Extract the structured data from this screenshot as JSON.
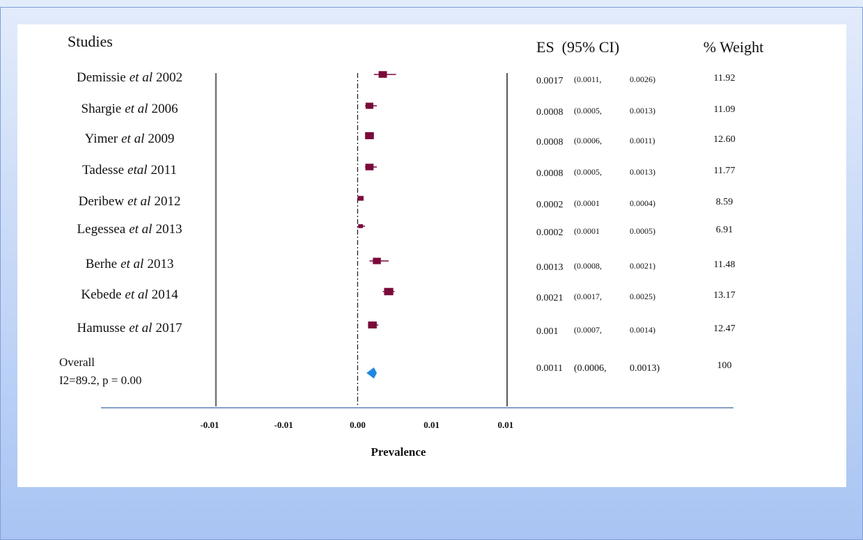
{
  "chart_data": {
    "type": "forest",
    "studies_header": "Studies",
    "es_header": "ES  (95% CI)",
    "weight_header": "% Weight",
    "x_label": "Prevalence",
    "studies": [
      {
        "author": "Demissie",
        "etal": "et al",
        "year": "2002"
      },
      {
        "author": "Shargie",
        "etal": "et al",
        "year": "2006"
      },
      {
        "author": "Yimer",
        "etal": "et al",
        "year": "2009"
      },
      {
        "author": "Tadesse",
        "etal": "etal",
        "year": "2011"
      },
      {
        "author": "Deribew",
        "etal": "et al",
        "year": "2012"
      },
      {
        "author": "Legessea",
        "etal": "et al",
        "year": "2013"
      },
      {
        "author": "Berhe",
        "etal": "et al",
        "year": "2013"
      },
      {
        "author": "Kebede",
        "etal": "et al",
        "year": "2014"
      },
      {
        "author": "Hamusse",
        "etal": "et al",
        "year": "2017"
      }
    ],
    "es": {
      "values": [
        0.0017,
        0.0008,
        0.0008,
        0.0008,
        0.0002,
        0.0002,
        0.0013,
        0.0021,
        0.001
      ]
    },
    "ci_low": {
      "values": [
        0.0011,
        0.0005,
        0.0006,
        0.0005,
        0.0001,
        0.0001,
        0.0008,
        0.0017,
        0.0007
      ],
      "value_labels": [
        "(0.0011,",
        "(0.0005,",
        "(0.0006,",
        "(0.0005,",
        "(0.0001",
        "(0.0001",
        "(0.0008,",
        "(0.0017,",
        "(0.0007,"
      ]
    },
    "ci_high": {
      "values": [
        0.0026,
        0.0013,
        0.0011,
        0.0013,
        0.0004,
        0.0005,
        0.0021,
        0.0025,
        0.0014
      ],
      "value_labels": [
        "0.0026)",
        "0.0013)",
        "0.0011)",
        "0.0013)",
        "0.0004)",
        "0.0005)",
        "0.0021)",
        "0.0025)",
        "0.0014)"
      ]
    },
    "weight": {
      "values": [
        11.92,
        11.09,
        12.6,
        11.77,
        8.59,
        6.91,
        11.48,
        13.17,
        12.47
      ],
      "value_labels": [
        "11.92",
        "11.09",
        "12.60",
        "11.77",
        "8.59",
        "6.91",
        "11.48",
        "13.17",
        "12.47"
      ]
    },
    "overall": {
      "label": "Overall",
      "heterogeneity": "I2=89.2, p = 0.00",
      "es": 0.0011,
      "ci_low": 0.0006,
      "ci_low_label": "(0.0006,",
      "ci_high": 0.0013,
      "ci_high_label": "0.0013)",
      "weight": 100
    },
    "xlim": [
      -0.01,
      0.0101
    ],
    "xticks": [
      {
        "value": -0.01,
        "label": "-0.01"
      },
      {
        "value": -0.005,
        "label": "-0.01"
      },
      {
        "value": 0,
        "label": "0.00"
      },
      {
        "value": 0.005,
        "label": "0.01"
      },
      {
        "value": 0.01,
        "label": "0.01"
      }
    ],
    "marker_color": "#7a0a3a",
    "overall_color": "#1e88e5"
  }
}
